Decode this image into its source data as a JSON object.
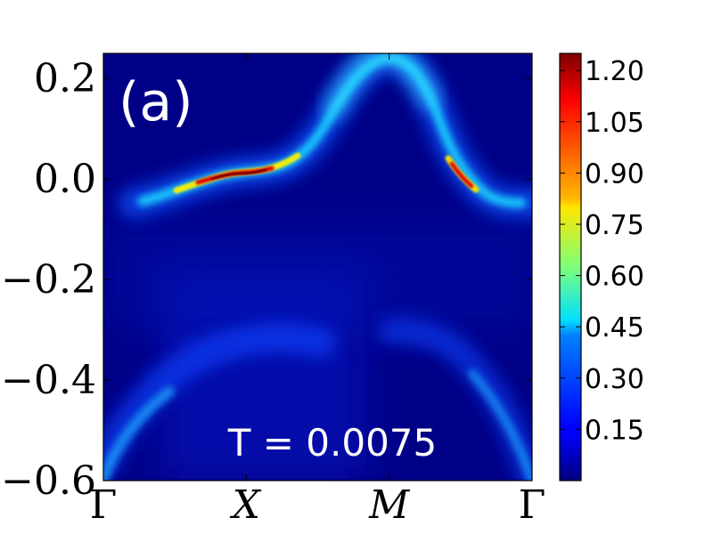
{
  "chart_data": {
    "type": "heatmap",
    "panel_label": "(a)",
    "annotation": "T = 0.0075",
    "ylim": [
      -0.6,
      0.25
    ],
    "y_ticks": [
      {
        "value": 0.2,
        "label": "0.2"
      },
      {
        "value": 0.0,
        "label": "0.0"
      },
      {
        "value": -0.2,
        "label": "−0.2"
      },
      {
        "value": -0.4,
        "label": "−0.4"
      },
      {
        "value": -0.6,
        "label": "−0.6"
      }
    ],
    "x_ticks": [
      {
        "value": 0.0,
        "label": "Γ"
      },
      {
        "value": 1.0,
        "label": "X"
      },
      {
        "value": 2.0,
        "label": "M"
      },
      {
        "value": 3.0,
        "label": "Γ"
      }
    ],
    "xlim": [
      0,
      3
    ],
    "colorbar": {
      "range": [
        0.0,
        1.25
      ],
      "ticks": [
        1.2,
        1.05,
        0.9,
        0.75,
        0.6,
        0.45,
        0.3,
        0.15
      ],
      "tick_labels": [
        "1.20",
        "1.05",
        "0.90",
        "0.75",
        "0.60",
        "0.45",
        "0.30",
        "0.15"
      ],
      "colormap": "jet"
    },
    "series": [
      {
        "values": [
          {
            "x": 0.0,
            "y": -0.055,
            "intensity": 0.15
          },
          {
            "x": 0.3,
            "y": -0.05,
            "intensity": 0.35
          },
          {
            "x": 0.6,
            "y": -0.015,
            "intensity": 0.9
          },
          {
            "x": 0.8,
            "y": 0.005,
            "intensity": 1.2
          },
          {
            "x": 1.0,
            "y": 0.01,
            "intensity": 1.2
          },
          {
            "x": 1.2,
            "y": 0.02,
            "intensity": 0.9
          },
          {
            "x": 1.5,
            "y": 0.09,
            "intensity": 0.4
          },
          {
            "x": 1.8,
            "y": 0.2,
            "intensity": 0.25
          },
          {
            "x": 2.0,
            "y": 0.24,
            "intensity": 0.25
          },
          {
            "x": 2.2,
            "y": 0.2,
            "intensity": 0.3
          },
          {
            "x": 2.4,
            "y": 0.1,
            "intensity": 0.4
          },
          {
            "x": 2.6,
            "y": 0.02,
            "intensity": 1.2
          },
          {
            "x": 2.8,
            "y": -0.04,
            "intensity": 0.4
          },
          {
            "x": 3.0,
            "y": -0.055,
            "intensity": 0.15
          }
        ]
      },
      {
        "values": [
          {
            "x": 0.0,
            "y": -0.6,
            "intensity": 0.35
          },
          {
            "x": 0.4,
            "y": -0.45,
            "intensity": 0.25
          },
          {
            "x": 0.8,
            "y": -0.38,
            "intensity": 0.15
          }
        ]
      },
      {
        "values": [
          {
            "x": 2.7,
            "y": -0.4,
            "intensity": 0.2
          },
          {
            "x": 2.85,
            "y": -0.5,
            "intensity": 0.3
          },
          {
            "x": 3.0,
            "y": -0.6,
            "intensity": 0.35
          }
        ]
      }
    ]
  }
}
